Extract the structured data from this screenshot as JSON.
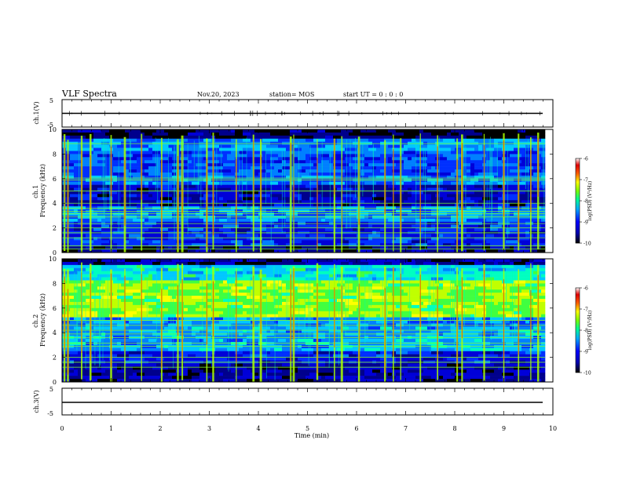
{
  "header": {
    "title": "VLF Spectra",
    "date": "Nov.20, 2023",
    "station": "station= MOS",
    "start": "start  UT =  0 : 0 : 0"
  },
  "colors": {
    "spectrogram_scale": [
      "#000000",
      "#0000a0",
      "#0000ff",
      "#00a0ff",
      "#00ffa0",
      "#a0ff00",
      "#ffff00",
      "#ff6000",
      "#e00000",
      "#ffffff"
    ]
  },
  "chart_data": [
    {
      "type": "line",
      "panel": "ch1-waveform",
      "ylabel": "ch.1(V)",
      "ylim": [
        -5,
        5
      ],
      "yticks": [
        "5",
        "-5"
      ],
      "xlim": [
        0,
        10
      ],
      "series": [
        {
          "x": [
            0,
            9.8
          ],
          "y": [
            0,
            0
          ]
        }
      ]
    },
    {
      "type": "heatmap",
      "panel": "ch1-spectrogram",
      "ylabel": "ch.1\nFrequency (kHz)",
      "ylim": [
        0,
        10
      ],
      "yticks": [
        "0",
        "2",
        "4",
        "6",
        "8",
        "10"
      ],
      "xlim": [
        0,
        10
      ],
      "data_end_min": 9.8,
      "colorbar": {
        "label": "log(PSD) (V²/Hz)",
        "range": [
          -10,
          -6
        ],
        "ticks": [
          "-6",
          "-7",
          "-8",
          "-9",
          "-10"
        ]
      },
      "bands_khz": [
        0.3,
        0.55,
        1.2,
        1.6,
        2.0,
        2.35,
        2.9,
        3.15,
        3.35,
        3.6,
        4.0,
        5.0,
        5.9,
        6.05,
        8.85
      ],
      "burst_times_min": [
        0.05,
        0.12,
        0.4,
        0.58,
        1.0,
        1.28,
        1.62,
        2.03,
        2.36,
        2.45,
        2.95,
        3.08,
        3.55,
        3.9,
        4.05,
        4.66,
        4.72,
        5.2,
        5.55,
        5.7,
        6.05,
        6.58,
        6.75,
        6.9,
        7.3,
        7.65,
        8.05,
        8.15,
        8.6,
        9.0,
        9.3,
        9.55,
        9.7
      ]
    },
    {
      "type": "heatmap",
      "panel": "ch2-spectrogram",
      "ylabel": "ch.2\nFrequency (kHz)",
      "ylim": [
        0,
        10
      ],
      "yticks": [
        "0",
        "2",
        "4",
        "6",
        "8",
        "10"
      ],
      "xlim": [
        0,
        10
      ],
      "data_end_min": 9.8,
      "colorbar": {
        "label": "log(PSD) (V²/Hz)",
        "range": [
          -10,
          -6
        ],
        "ticks": [
          "-6",
          "-7",
          "-8",
          "-9",
          "-10"
        ]
      },
      "bands_khz": [
        1.2,
        1.6,
        2.0,
        2.9,
        3.15,
        3.6,
        3.9,
        4.2,
        4.6,
        5.0
      ],
      "burst_times_min": [
        0.05,
        0.12,
        0.4,
        0.58,
        1.0,
        1.28,
        1.62,
        2.03,
        2.36,
        2.45,
        2.95,
        3.08,
        3.55,
        3.9,
        4.05,
        4.66,
        4.72,
        5.2,
        5.55,
        5.7,
        6.05,
        6.58,
        6.75,
        6.9,
        7.3,
        7.65,
        8.05,
        8.15,
        8.6,
        9.0,
        9.3,
        9.55,
        9.7
      ]
    },
    {
      "type": "line",
      "panel": "ch3-waveform",
      "ylabel": "ch.3(V)",
      "ylim": [
        -5,
        5
      ],
      "yticks": [
        "5",
        "-5"
      ],
      "xlim": [
        0,
        10
      ],
      "series": [
        {
          "x": [
            0,
            9.8
          ],
          "y": [
            0,
            0
          ]
        }
      ]
    }
  ],
  "x_axis": {
    "label": "Time  (min)",
    "ticks": [
      "0",
      "1",
      "2",
      "3",
      "4",
      "5",
      "6",
      "7",
      "8",
      "9",
      "10"
    ]
  }
}
